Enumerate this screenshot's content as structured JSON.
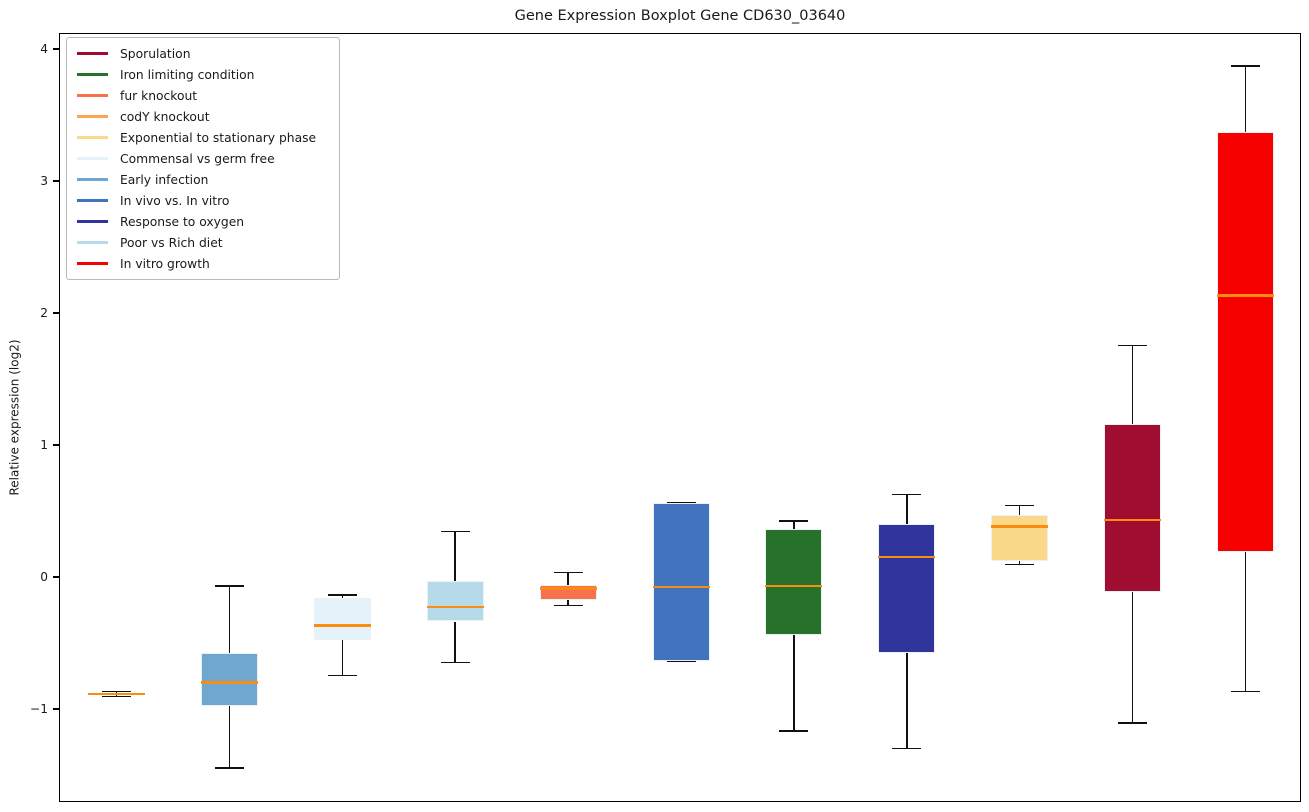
{
  "chart_data": {
    "type": "boxplot",
    "title": "Gene Expression Boxplot Gene CD630_03640",
    "xlabel": "",
    "ylabel": "Relative expression (log2)",
    "ylim": [
      -1.705,
      4.121
    ],
    "yticks": [
      4,
      3,
      2,
      1,
      0,
      -1
    ],
    "x_tick_labels": [],
    "grid": false,
    "outliers": [],
    "median_color": "#FB8C12",
    "whisker_color": "#111111",
    "box_edge_color": "#ECF1F8",
    "legend_position": "upper left",
    "series": [
      {
        "label": "codY knockout",
        "color": "#FBA752",
        "whislo": -0.9,
        "q1": -0.89,
        "med": -0.88,
        "q3": -0.87,
        "whishi": -0.86
      },
      {
        "label": "Early infection",
        "color": "#6FA7D1",
        "whislo": -1.44,
        "q1": -0.97,
        "med": -0.79,
        "q3": -0.57,
        "whishi": -0.06
      },
      {
        "label": "Commensal vs germ free",
        "color": "#E4F3FA",
        "whislo": -0.74,
        "q1": -0.47,
        "med": -0.36,
        "q3": -0.15,
        "whishi": -0.13
      },
      {
        "label": "Poor vs Rich diet",
        "color": "#B6DBE8",
        "whislo": -0.64,
        "q1": -0.33,
        "med": -0.22,
        "q3": -0.02,
        "whishi": 0.35
      },
      {
        "label": "fur knockout",
        "color": "#F8714D",
        "whislo": -0.21,
        "q1": -0.17,
        "med": -0.08,
        "q3": -0.05,
        "whishi": 0.04
      },
      {
        "label": "In vivo vs. In vitro",
        "color": "#4273BE",
        "whislo": -0.63,
        "q1": -0.63,
        "med": -0.07,
        "q3": 0.57,
        "whishi": 0.57
      },
      {
        "label": "Iron limiting condition",
        "color": "#26722B",
        "whislo": -1.16,
        "q1": -0.43,
        "med": -0.06,
        "q3": 0.37,
        "whishi": 0.43
      },
      {
        "label": "Response to oxygen",
        "color": "#2F359B",
        "whislo": -1.29,
        "q1": -0.57,
        "med": 0.16,
        "q3": 0.41,
        "whishi": 0.63
      },
      {
        "label": "Exponential to stationary phase",
        "color": "#FBD98B",
        "whislo": 0.1,
        "q1": 0.13,
        "med": 0.39,
        "q3": 0.48,
        "whishi": 0.55
      },
      {
        "label": "Sporulation",
        "color": "#A00D31",
        "whislo": -1.1,
        "q1": -0.11,
        "med": 0.44,
        "q3": 1.17,
        "whishi": 1.76
      },
      {
        "label": "In vitro growth",
        "color": "#F70000",
        "whislo": -0.86,
        "q1": 0.2,
        "med": 2.14,
        "q3": 3.38,
        "whishi": 3.88
      }
    ],
    "legend": [
      {
        "label": "Sporulation",
        "color": "#A00D31"
      },
      {
        "label": "Iron limiting condition",
        "color": "#26722B"
      },
      {
        "label": "fur knockout",
        "color": "#F8714D"
      },
      {
        "label": "codY knockout",
        "color": "#FBA752"
      },
      {
        "label": "Exponential to stationary phase",
        "color": "#FBD98B"
      },
      {
        "label": "Commensal vs germ free",
        "color": "#E4F3FA"
      },
      {
        "label": "Early infection",
        "color": "#6FA7D1"
      },
      {
        "label": "In vivo vs. In vitro",
        "color": "#4273BE"
      },
      {
        "label": "Response to oxygen",
        "color": "#2F359B"
      },
      {
        "label": "Poor vs Rich diet",
        "color": "#B6DBE8"
      },
      {
        "label": "In vitro growth",
        "color": "#F70000"
      }
    ]
  }
}
